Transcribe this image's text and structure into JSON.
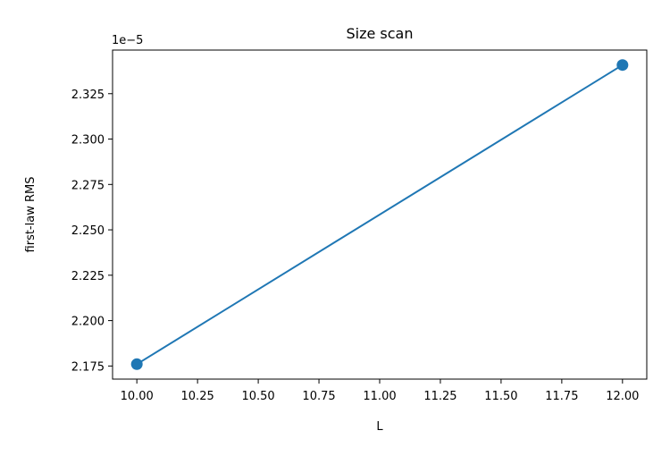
{
  "chart_data": {
    "type": "line",
    "title": "Size scan",
    "xlabel": "L",
    "ylabel": "first-law RMS",
    "y_offset_label": "1e−5",
    "x": [
      10.0,
      12.0
    ],
    "series": [
      {
        "values": [
          2.176e-05,
          2.3408e-05
        ],
        "color": "#1f77b4",
        "marker": "circle"
      }
    ],
    "xlim": [
      9.9,
      12.1
    ],
    "ylim": [
      2.16778e-05,
      2.34902e-05
    ],
    "x_ticks": [
      10.0,
      10.25,
      10.5,
      10.75,
      11.0,
      11.25,
      11.5,
      11.75,
      12.0
    ],
    "x_tick_labels": [
      "10.00",
      "10.25",
      "10.50",
      "10.75",
      "11.00",
      "11.25",
      "11.50",
      "11.75",
      "12.00"
    ],
    "y_ticks": [
      2.175e-05,
      2.2e-05,
      2.225e-05,
      2.25e-05,
      2.275e-05,
      2.3e-05,
      2.325e-05
    ],
    "y_tick_labels": [
      "2.175",
      "2.200",
      "2.225",
      "2.250",
      "2.275",
      "2.300",
      "2.325"
    ],
    "grid": false,
    "legend": false
  }
}
